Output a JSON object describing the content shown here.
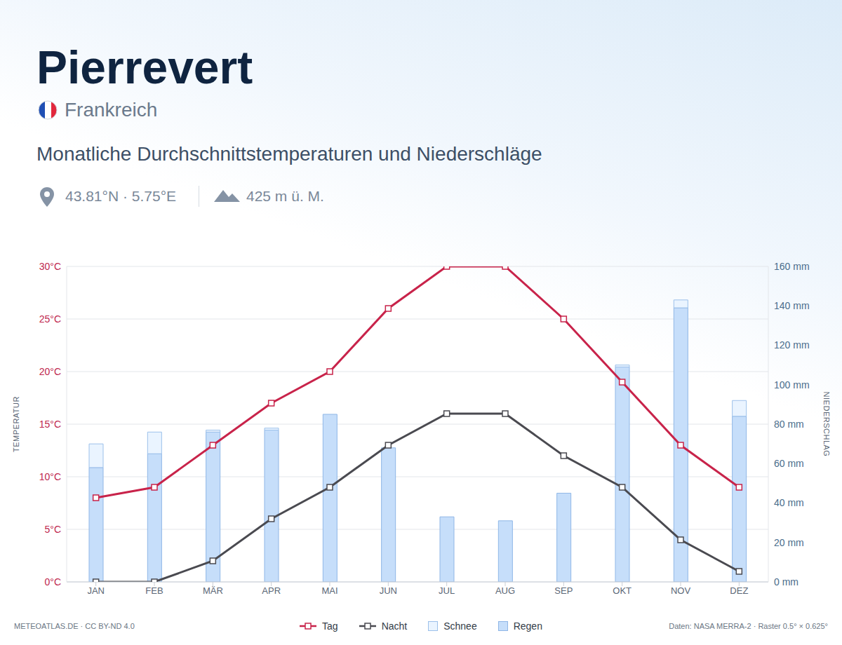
{
  "chart_data": {
    "type": "bar_line",
    "title": "Pierrevert",
    "country": "Frankreich",
    "subtitle": "Monatliche Durchschnittstemperaturen und Niederschläge",
    "location": "43.81°N · 5.75°E",
    "elevation": "425 m ü. M.",
    "credit": "METEOATLAS.DE · CC BY-ND 4.0",
    "source": "Daten: NASA MERRA-2 · Raster 0.5° × 0.625°",
    "ylabel": "TEMPERATUR",
    "y2label": "NIEDERSCHLAG",
    "categories": [
      "JAN",
      "FEB",
      "MÄR",
      "APR",
      "MAI",
      "JUN",
      "JUL",
      "AUG",
      "SEP",
      "OKT",
      "NOV",
      "DEZ"
    ],
    "series": [
      {
        "name": "Tag",
        "type": "line",
        "color": "#c8234a",
        "marker": "square",
        "values": [
          8,
          9,
          13,
          17,
          20,
          26,
          30,
          30,
          25,
          19,
          13,
          9
        ]
      },
      {
        "name": "Nacht",
        "type": "line",
        "color": "#4a4a50",
        "marker": "square",
        "values": [
          0,
          0,
          2,
          6,
          9,
          13,
          16,
          16,
          12,
          9,
          4,
          1
        ]
      },
      {
        "name": "Schnee",
        "type": "bar",
        "axis": "y2",
        "color": "#eaf4ff",
        "values": [
          12,
          11,
          1,
          1,
          0,
          0,
          0,
          0,
          0,
          1,
          4,
          8
        ]
      },
      {
        "name": "Regen",
        "type": "bar",
        "axis": "y2",
        "color": "#c6defa",
        "values": [
          58,
          65,
          76,
          77,
          85,
          68,
          33,
          31,
          45,
          109,
          139,
          84
        ]
      }
    ],
    "stacked": true,
    "grid": true,
    "legend": "bottom",
    "ylim": [
      0,
      30
    ],
    "yticks": [
      {
        "value": 0,
        "label": "0°C"
      },
      {
        "value": 5,
        "label": "5°C"
      },
      {
        "value": 10,
        "label": "10°C"
      },
      {
        "value": 15,
        "label": "15°C"
      },
      {
        "value": 20,
        "label": "20°C"
      },
      {
        "value": 25,
        "label": "25°C"
      },
      {
        "value": 30,
        "label": "30°C"
      }
    ],
    "y2lim": [
      0,
      160
    ],
    "y2ticks": [
      {
        "value": 0,
        "label": "0 mm"
      },
      {
        "value": 20,
        "label": "20 mm"
      },
      {
        "value": 40,
        "label": "40 mm"
      },
      {
        "value": 60,
        "label": "60 mm"
      },
      {
        "value": 80,
        "label": "80 mm"
      },
      {
        "value": 100,
        "label": "100 mm"
      },
      {
        "value": 120,
        "label": "120 mm"
      },
      {
        "value": 140,
        "label": "140 mm"
      },
      {
        "value": 160,
        "label": "160 mm"
      }
    ]
  }
}
